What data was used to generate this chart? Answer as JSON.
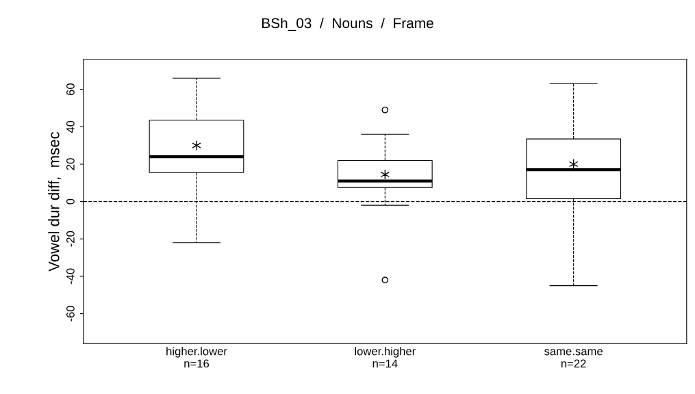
{
  "chart_data": {
    "type": "box",
    "title": "BSh_03  /  Nouns  /  Frame",
    "ylabel": "Vowel dur diff,  msec",
    "categories": [
      "higher.lower\nn=16",
      "lower.higher\nn=14",
      "same.same\nn=22"
    ],
    "boxes": [
      {
        "low": -22,
        "q1": 15.5,
        "median": 24,
        "q3": 43.5,
        "high": 66,
        "mean": 30
      },
      {
        "low": -2,
        "q1": 7.5,
        "median": 11,
        "q3": 22,
        "high": 36,
        "mean": 14.5,
        "outliers": [
          49,
          -42
        ]
      },
      {
        "low": -45,
        "q1": 1.5,
        "median": 17,
        "q3": 33.5,
        "high": 63,
        "mean": 20
      }
    ],
    "ylim": [
      -76,
      76
    ],
    "yticks": [
      -60,
      -40,
      -20,
      0,
      20,
      40,
      60
    ],
    "ref_lines": [
      {
        "axis": "y",
        "value": 0,
        "line_style": "dashed",
        "color": "#000000"
      }
    ],
    "grid": false,
    "legend": false
  }
}
